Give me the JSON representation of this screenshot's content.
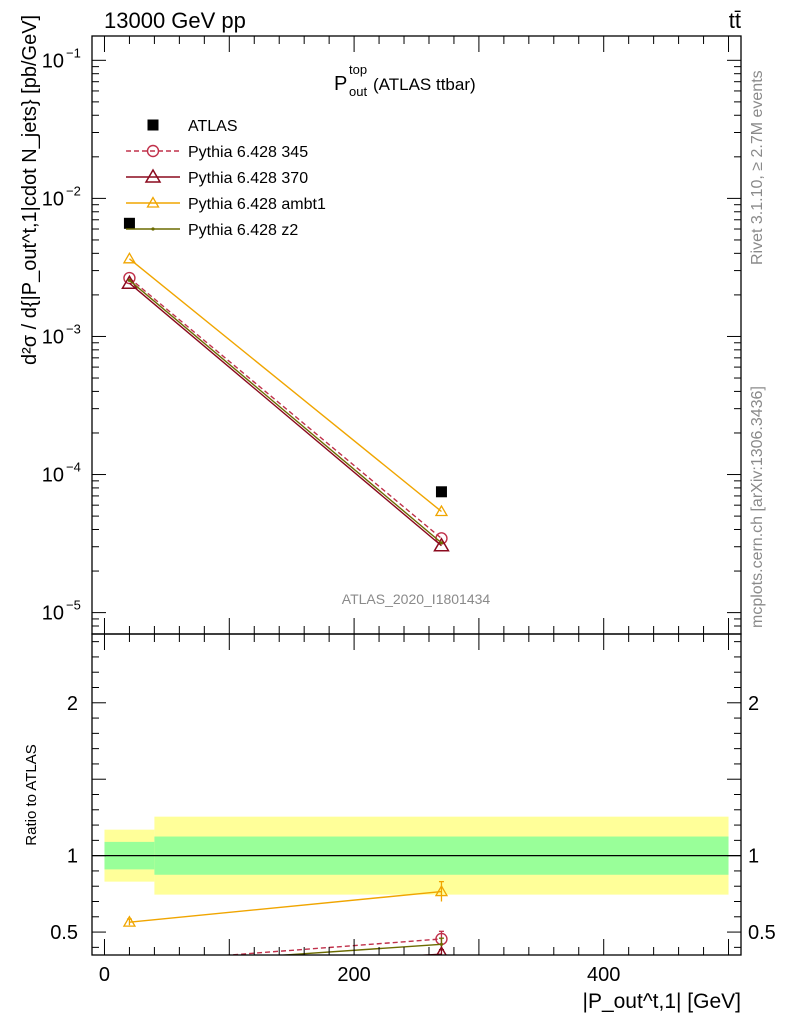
{
  "header": {
    "energy_label": "13000 GeV pp",
    "process_label": "tt̄"
  },
  "side_labels": {
    "rivet": "Rivet 3.1.10, ≥ 2.7M events",
    "mcplots": "mcplots.cern.ch [arXiv:1306.3436]"
  },
  "plot_title": {
    "main": "P",
    "sup": "top",
    "sub": "out",
    "rest": " (ATLAS ttbar)"
  },
  "analysis_id": "ATLAS_2020_I1801434",
  "ylabel_main": "d²σ / d{|P_out^t,1|cdot N_jets}  [pb/GeV]",
  "ylabel_ratio": "Ratio to ATLAS",
  "xlabel": "|P_out^t,1| [GeV]",
  "colors": {
    "atlas": "#000000",
    "p345": "#c0304a",
    "p370": "#8b0a1e",
    "ambt1": "#f0a500",
    "z2": "#6b6b00",
    "band_inner": "#99ff99",
    "band_outer": "#ffff99"
  },
  "legend": [
    {
      "label": "ATLAS",
      "key": "atlas"
    },
    {
      "label": "Pythia 6.428 345",
      "key": "p345"
    },
    {
      "label": "Pythia 6.428 370",
      "key": "p370"
    },
    {
      "label": "Pythia 6.428 ambt1",
      "key": "ambt1"
    },
    {
      "label": "Pythia 6.428 z2",
      "key": "z2"
    }
  ],
  "chart_data": {
    "type": "line",
    "x_bins": [
      [
        0,
        40
      ],
      [
        40,
        500
      ]
    ],
    "x": [
      20,
      270
    ],
    "main_panel": {
      "yscale": "log",
      "ylim": [
        7e-06,
        0.15
      ],
      "y_ticks": [
        {
          "value": 1e-05,
          "base": "10",
          "exp": "−5"
        },
        {
          "value": 0.0001,
          "base": "10",
          "exp": "−4"
        },
        {
          "value": 0.001,
          "base": "10",
          "exp": "−3"
        },
        {
          "value": 0.01,
          "base": "10",
          "exp": "−2"
        },
        {
          "value": 0.1,
          "base": "10",
          "exp": "−1"
        }
      ],
      "series": [
        {
          "name": "ATLAS",
          "key": "atlas",
          "values": [
            0.0066,
            7.5e-05
          ]
        },
        {
          "name": "Pythia 6.428 345",
          "key": "p345",
          "values": [
            0.00265,
            3.45e-05
          ]
        },
        {
          "name": "Pythia 6.428 370",
          "key": "p370",
          "values": [
            0.00243,
            3.05e-05
          ]
        },
        {
          "name": "Pythia 6.428 ambt1",
          "key": "ambt1",
          "values": [
            0.00365,
            5.4e-05
          ]
        },
        {
          "name": "Pythia 6.428 z2",
          "key": "z2",
          "values": [
            0.00255,
            3.2e-05
          ]
        }
      ]
    },
    "ratio_panel": {
      "ylim": [
        0.35,
        2.45
      ],
      "y_ticks": [
        0.5,
        1,
        2
      ],
      "band_inner": [
        [
          0.91,
          1.09
        ],
        [
          0.875,
          1.125
        ]
      ],
      "band_outer": [
        [
          0.83,
          1.17
        ],
        [
          0.745,
          1.255
        ]
      ],
      "series": [
        {
          "name": "Pythia 6.428 ambt1",
          "key": "ambt1",
          "values": [
            0.565,
            0.765
          ],
          "errors": [
            0.02,
            0.065
          ]
        },
        {
          "name": "Pythia 6.428 345",
          "key": "p345",
          "values": [
            0.3,
            0.455
          ],
          "errors": [
            0.0,
            0.05
          ]
        },
        {
          "name": "Pythia 6.428 z2",
          "key": "z2",
          "values": [
            0.28,
            0.42
          ],
          "errors": [
            0.0,
            0.04
          ]
        },
        {
          "name": "Pythia 6.428 370",
          "key": "p370",
          "values": [
            0.25,
            0.355
          ],
          "errors": [
            0.0,
            0.03
          ]
        }
      ]
    },
    "x_ticks": [
      0,
      200,
      400
    ],
    "xlim": [
      -10,
      510
    ]
  }
}
